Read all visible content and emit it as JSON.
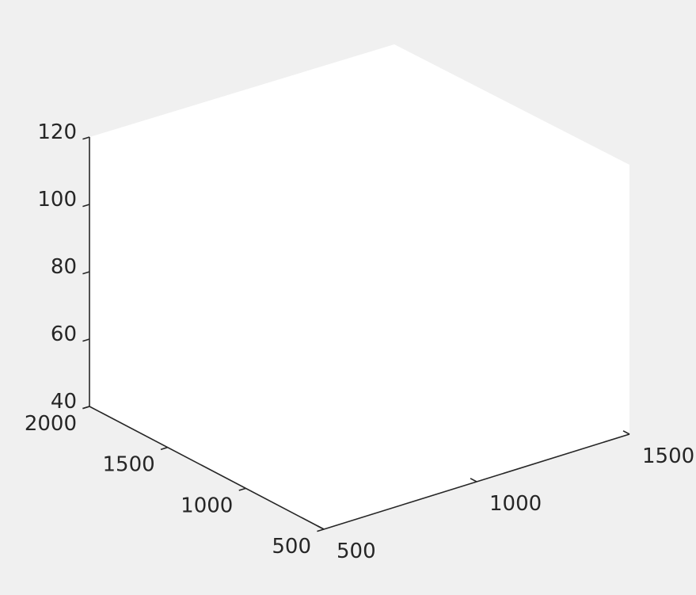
{
  "chart_data": {
    "type": "scatter",
    "projection": "3d",
    "title": "",
    "xlabel": "",
    "ylabel": "",
    "zlabel": "",
    "grid": false,
    "legend": "none",
    "xlim": [
      500,
      2000
    ],
    "ylim": [
      500,
      1500
    ],
    "zlim": [
      40,
      120
    ],
    "x_ticks": [
      {
        "value": 500,
        "label": "500"
      },
      {
        "value": 1000,
        "label": "1000"
      },
      {
        "value": 1500,
        "label": "1500"
      },
      {
        "value": 2000,
        "label": "2000"
      }
    ],
    "y_ticks": [
      {
        "value": 500,
        "label": "500"
      },
      {
        "value": 1000,
        "label": "1000"
      },
      {
        "value": 1500,
        "label": "1500"
      }
    ],
    "z_ticks": [
      {
        "value": 40,
        "label": "40"
      },
      {
        "value": 60,
        "label": "60"
      },
      {
        "value": 80,
        "label": "80"
      },
      {
        "value": 100,
        "label": "100"
      },
      {
        "value": 120,
        "label": "120"
      }
    ],
    "series": [],
    "colors": {
      "figure_background": "#f0f0f0",
      "axes_background": "#ffffff",
      "axis_line": "#262626",
      "text": "#262626"
    }
  }
}
